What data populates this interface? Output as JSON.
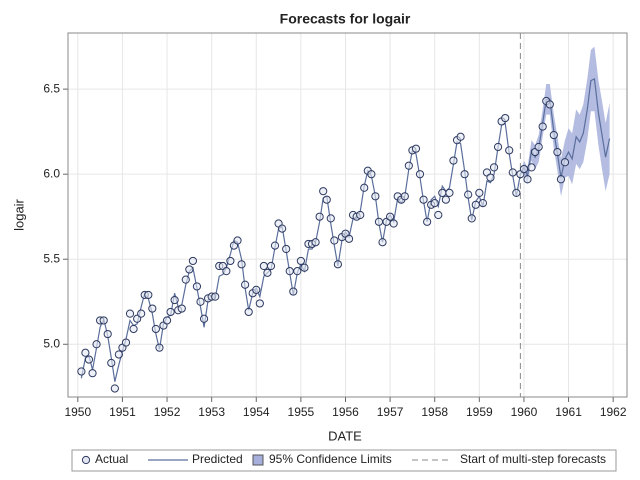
{
  "chart_data": {
    "type": "line",
    "title": "Forecasts for logair",
    "x_label": "DATE",
    "y_label": "logair",
    "xlim": [
      1949.78,
      1962.31
    ],
    "ylim": [
      4.69,
      6.83
    ],
    "xticks": [
      1950,
      1951,
      1952,
      1953,
      1954,
      1955,
      1956,
      1957,
      1958,
      1959,
      1960,
      1961,
      1962
    ],
    "yticks": [
      {
        "value": 5,
        "label": "5.0"
      },
      {
        "value": 5.5,
        "label": "5.5"
      },
      {
        "value": 6,
        "label": "6.0"
      },
      {
        "value": 6.5,
        "label": "6.5"
      }
    ],
    "grid": true,
    "x": [
      1950.08,
      1950.17,
      1950.25,
      1950.33,
      1950.42,
      1950.5,
      1950.58,
      1950.67,
      1950.75,
      1950.83,
      1950.92,
      1951.0,
      1951.08,
      1951.17,
      1951.25,
      1951.33,
      1951.42,
      1951.5,
      1951.58,
      1951.67,
      1951.75,
      1951.83,
      1951.92,
      1952.0,
      1952.08,
      1952.17,
      1952.25,
      1952.33,
      1952.42,
      1952.5,
      1952.58,
      1952.67,
      1952.75,
      1952.83,
      1952.92,
      1953.0,
      1953.08,
      1953.17,
      1953.25,
      1953.33,
      1953.42,
      1953.5,
      1953.58,
      1953.67,
      1953.75,
      1953.83,
      1953.92,
      1954.0,
      1954.08,
      1954.17,
      1954.25,
      1954.33,
      1954.42,
      1954.5,
      1954.58,
      1954.67,
      1954.75,
      1954.83,
      1954.92,
      1955.0,
      1955.08,
      1955.17,
      1955.25,
      1955.33,
      1955.42,
      1955.5,
      1955.58,
      1955.67,
      1955.75,
      1955.83,
      1955.92,
      1956.0,
      1956.08,
      1956.17,
      1956.25,
      1956.33,
      1956.42,
      1956.5,
      1956.58,
      1956.67,
      1956.75,
      1956.83,
      1956.92,
      1957.0,
      1957.08,
      1957.17,
      1957.25,
      1957.33,
      1957.42,
      1957.5,
      1957.58,
      1957.67,
      1957.75,
      1957.83,
      1957.92,
      1958.0,
      1958.08,
      1958.17,
      1958.25,
      1958.33,
      1958.42,
      1958.5,
      1958.58,
      1958.67,
      1958.75,
      1958.83,
      1958.92,
      1959.0,
      1959.08,
      1959.17,
      1959.25,
      1959.33,
      1959.42,
      1959.5,
      1959.58,
      1959.67,
      1959.75,
      1959.83,
      1959.92,
      1960.0,
      1960.08,
      1960.17,
      1960.25,
      1960.33,
      1960.42,
      1960.5,
      1960.58,
      1960.67,
      1960.75,
      1960.83,
      1960.92,
      1961.0,
      1961.08,
      1961.17,
      1961.25,
      1961.33,
      1961.42,
      1961.5,
      1961.58,
      1961.67,
      1961.75,
      1961.83,
      1961.92
    ],
    "series": [
      {
        "name": "Actual",
        "color": "#2e3a60",
        "values": [
          4.84,
          4.95,
          4.91,
          4.83,
          5.0,
          5.14,
          5.14,
          5.06,
          4.89,
          4.74,
          4.94,
          4.98,
          5.01,
          5.18,
          5.09,
          5.15,
          5.18,
          5.29,
          5.29,
          5.21,
          5.09,
          4.98,
          5.11,
          5.14,
          5.19,
          5.26,
          5.2,
          5.21,
          5.38,
          5.44,
          5.49,
          5.34,
          5.25,
          5.15,
          5.27,
          5.28,
          5.28,
          5.46,
          5.46,
          5.43,
          5.49,
          5.58,
          5.61,
          5.47,
          5.35,
          5.19,
          5.3,
          5.32,
          5.24,
          5.46,
          5.42,
          5.46,
          5.58,
          5.71,
          5.68,
          5.56,
          5.43,
          5.31,
          5.43,
          5.49,
          5.45,
          5.59,
          5.59,
          5.6,
          5.75,
          5.9,
          5.85,
          5.74,
          5.61,
          5.47,
          5.63,
          5.65,
          5.62,
          5.76,
          5.75,
          5.76,
          5.92,
          6.02,
          6.0,
          5.87,
          5.72,
          5.6,
          5.72,
          5.75,
          5.71,
          5.87,
          5.85,
          5.87,
          6.05,
          6.14,
          6.15,
          6.0,
          5.85,
          5.72,
          5.82,
          5.83,
          5.76,
          5.89,
          5.85,
          5.89,
          6.08,
          6.2,
          6.22,
          6.0,
          5.88,
          5.74,
          5.82,
          5.89,
          5.83,
          6.01,
          5.98,
          6.04,
          6.16,
          6.31,
          6.33,
          6.14,
          6.01,
          5.89,
          6.0,
          6.03,
          5.97,
          6.04,
          6.13,
          6.16,
          6.28,
          6.43,
          6.41,
          6.23,
          6.13,
          5.97,
          6.07,
          null,
          null,
          null,
          null,
          null,
          null,
          null,
          null,
          null,
          null,
          null,
          null
        ]
      },
      {
        "name": "Predicted",
        "color": "#5a6e9c",
        "values": [
          4.8,
          4.92,
          4.93,
          4.85,
          4.98,
          5.1,
          5.15,
          5.05,
          4.92,
          4.78,
          4.88,
          4.96,
          5.03,
          5.14,
          5.11,
          5.12,
          5.22,
          5.3,
          5.27,
          5.18,
          5.06,
          4.97,
          5.12,
          5.16,
          5.17,
          5.3,
          5.22,
          5.23,
          5.35,
          5.43,
          5.45,
          5.33,
          5.22,
          5.1,
          5.26,
          5.29,
          5.27,
          5.4,
          5.41,
          5.45,
          5.53,
          5.61,
          5.6,
          5.5,
          5.33,
          5.2,
          5.3,
          5.33,
          5.28,
          5.4,
          5.42,
          5.44,
          5.57,
          5.68,
          5.69,
          5.55,
          5.42,
          5.29,
          5.42,
          5.47,
          5.43,
          5.56,
          5.56,
          5.6,
          5.72,
          5.86,
          5.87,
          5.71,
          5.58,
          5.46,
          5.61,
          5.66,
          5.63,
          5.74,
          5.74,
          5.78,
          5.93,
          6.02,
          5.99,
          5.87,
          5.71,
          5.6,
          5.73,
          5.76,
          5.72,
          5.86,
          5.83,
          5.87,
          6.03,
          6.14,
          6.12,
          5.98,
          5.84,
          5.72,
          5.85,
          5.87,
          5.81,
          5.93,
          5.9,
          5.92,
          6.06,
          6.19,
          6.18,
          6.02,
          5.86,
          5.73,
          5.84,
          5.87,
          5.81,
          5.96,
          5.95,
          6.0,
          6.16,
          6.29,
          6.3,
          6.12,
          5.99,
          5.87,
          6.0,
          6.04,
          5.99,
          6.14,
          6.1,
          6.15,
          6.3,
          6.44,
          6.44,
          6.25,
          6.12,
          5.98,
          6.09,
          6.13,
          6.09,
          6.22,
          6.19,
          6.24,
          6.38,
          6.55,
          6.56,
          6.36,
          6.23,
          6.1,
          6.21
        ]
      }
    ],
    "band": {
      "name": "95% Confidence Limits",
      "color": "#a7b0dc",
      "x": [
        1959.92,
        1960.0,
        1960.08,
        1960.17,
        1960.25,
        1960.33,
        1960.42,
        1960.5,
        1960.58,
        1960.67,
        1960.75,
        1960.83,
        1960.92,
        1961.0,
        1961.08,
        1961.17,
        1961.25,
        1961.33,
        1961.42,
        1961.5,
        1961.58,
        1961.67,
        1961.75,
        1961.83,
        1961.92
      ],
      "lower": [
        6.0,
        6.0,
        5.94,
        6.08,
        6.03,
        6.07,
        6.22,
        6.35,
        6.35,
        6.15,
        6.02,
        5.87,
        5.98,
        5.99,
        5.94,
        6.06,
        6.03,
        6.07,
        6.2,
        6.37,
        6.37,
        6.17,
        6.03,
        5.9,
        6.0
      ],
      "upper": [
        6.0,
        6.08,
        6.04,
        6.2,
        6.17,
        6.23,
        6.38,
        6.53,
        6.53,
        6.35,
        6.22,
        6.09,
        6.2,
        6.27,
        6.24,
        6.38,
        6.35,
        6.41,
        6.56,
        6.73,
        6.75,
        6.55,
        6.43,
        6.3,
        6.42
      ]
    },
    "forecast_start": {
      "name": "Start of multi-step forecasts",
      "value": 1959.92,
      "color": "#8a8a8a"
    }
  }
}
